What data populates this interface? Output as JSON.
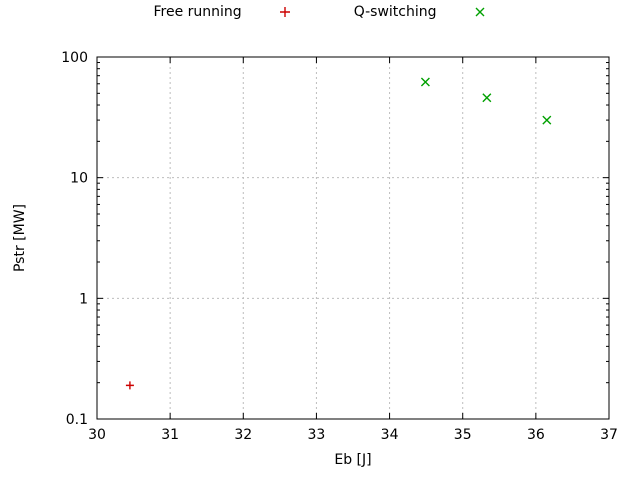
{
  "chart_data": {
    "type": "scatter",
    "title": "",
    "xlabel": "Eb [J]",
    "ylabel": "Pstr [MW]",
    "xlim": [
      30,
      37
    ],
    "ylim": [
      0.1,
      100
    ],
    "x_scale": "linear",
    "y_scale": "log",
    "x_ticks": [
      30,
      31,
      32,
      33,
      34,
      35,
      36,
      37
    ],
    "y_ticks": [
      0.1,
      1,
      10,
      100
    ],
    "y_tick_labels": [
      "0.1",
      "1",
      "10",
      "100"
    ],
    "grid": true,
    "legend_position": "top-center",
    "series": [
      {
        "name": "Free running",
        "marker": "plus",
        "color": "#cc0000",
        "points": [
          {
            "x": 30.45,
            "y": 0.19
          }
        ]
      },
      {
        "name": "Q-switching",
        "marker": "cross",
        "color": "#00a000",
        "points": [
          {
            "x": 34.49,
            "y": 62
          },
          {
            "x": 35.33,
            "y": 46
          },
          {
            "x": 36.15,
            "y": 30
          }
        ]
      }
    ]
  }
}
